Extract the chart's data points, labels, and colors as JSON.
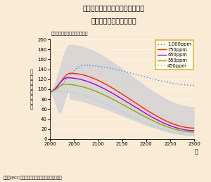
{
  "title_line1": "さまざまな安定化水準に対応する",
  "title_line2": "二酸化炭素排出量の変化",
  "subtitle": "（単位：億トン（炭素換算））",
  "xlabel": "年",
  "ylabel": "二\n酸\n化\n炭\n素\n排\n出\n量",
  "footnote": "資料：IPCC『第３次評価報告書』より環境省作成",
  "background_color": "#faebd7",
  "plot_bg_color": "#faebd7",
  "xmin": 2000,
  "xmax": 2300,
  "ymin": 0,
  "ymax": 200,
  "yticks": [
    0,
    20,
    40,
    60,
    80,
    100,
    120,
    140,
    160,
    180,
    200
  ],
  "xticks": [
    2000,
    2050,
    2100,
    2150,
    2200,
    2250,
    2300
  ],
  "legend_entries": [
    "1,000ppm",
    "750ppm",
    "650ppm",
    "550ppm",
    "450ppm"
  ],
  "line_colors": [
    "#4488DD",
    "#FF2200",
    "#AA00CC",
    "#88AA00",
    "#88CCEE"
  ],
  "shade_color": "#B0BBD0",
  "shade_alpha": 0.45,
  "legend_face": "#FFFFF0",
  "legend_edge": "#DAA520"
}
